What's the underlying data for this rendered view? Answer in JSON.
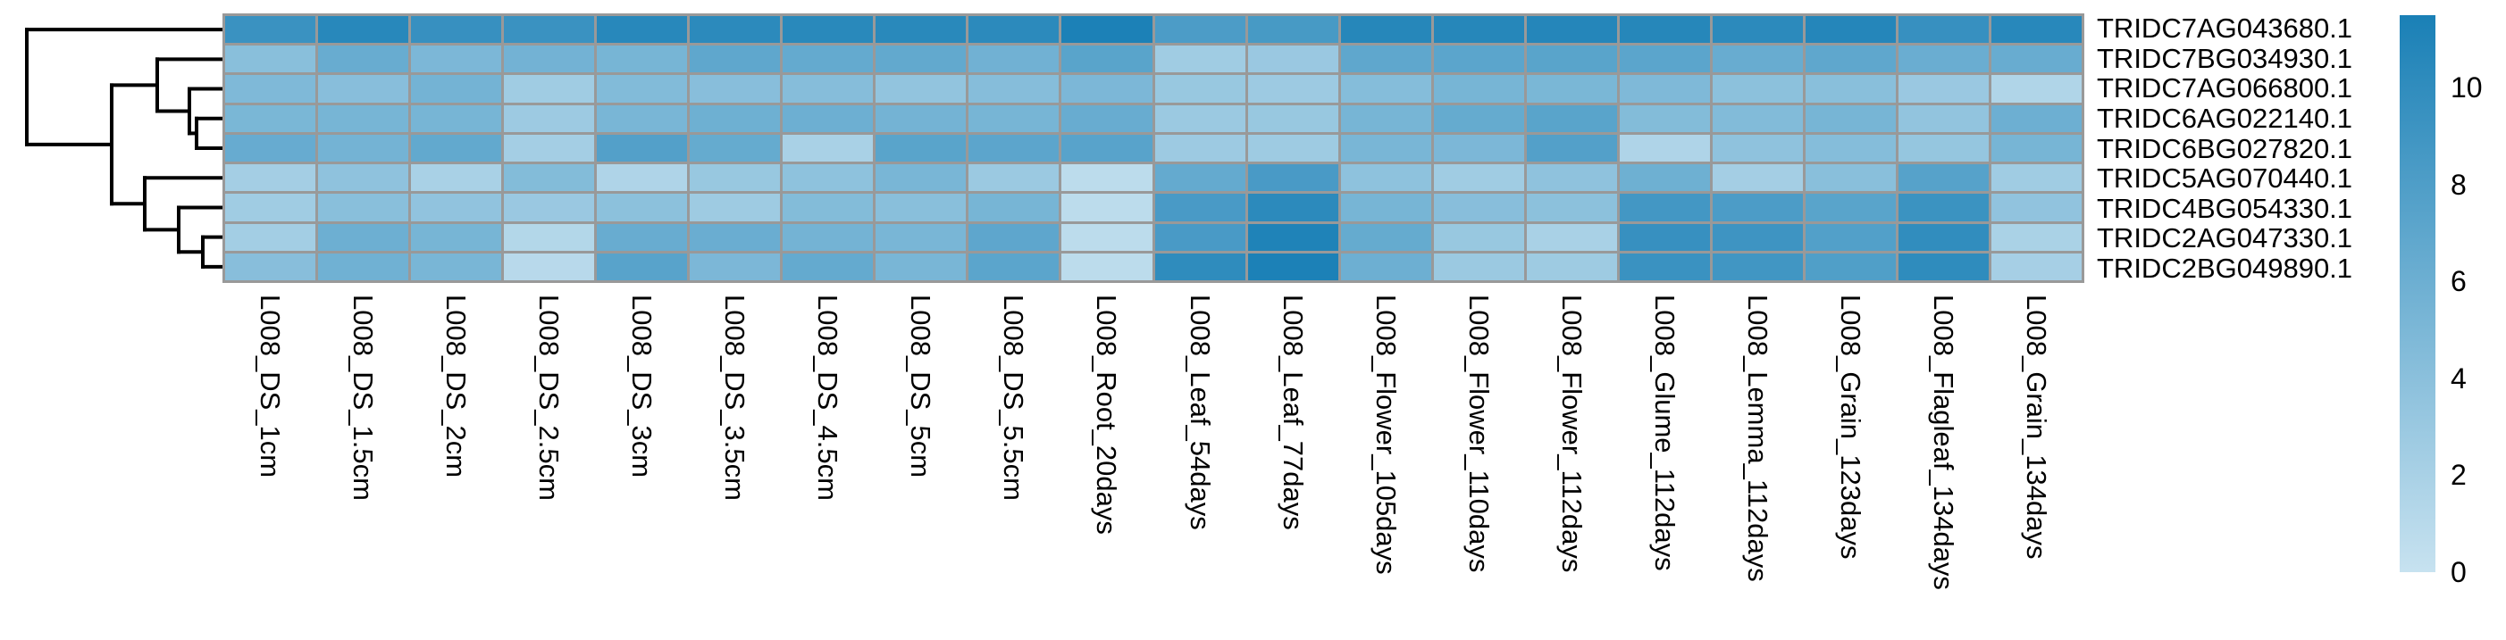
{
  "figure": {
    "background": "#ffffff",
    "text_color": "#000000"
  },
  "chart_data": {
    "type": "heatmap",
    "title": "",
    "xlabel": "",
    "ylabel": "",
    "legend_position": "right",
    "row_dendrogram_side": "left",
    "grid_color": "#999999",
    "dendrogram_line_color": "#000000",
    "rows": [
      "TRIDC7AG043680.1",
      "TRIDC7BG034930.1",
      "TRIDC7AG066800.1",
      "TRIDC6AG022140.1",
      "TRIDC6BG027820.1",
      "TRIDC5AG070440.1",
      "TRIDC4BG054330.1",
      "TRIDC2AG047330.1",
      "TRIDC2BG049890.1"
    ],
    "columns": [
      "L008_DS_1cm",
      "L008_DS_1.5cm",
      "L008_DS_2cm",
      "L008_DS_2.5cm",
      "L008_DS_3cm",
      "L008_DS_3.5cm",
      "L008_DS_4.5cm",
      "L008_DS_5cm",
      "L008_DS_5.5cm",
      "L008_Root_20days",
      "L008_Leaf_54days",
      "L008_Leaf_77days",
      "L008_Flower_105days",
      "L008_Flower_110days",
      "L008_Flower_112days",
      "L008_Glume_112days",
      "L008_Lemma_112days",
      "L008_Grain_123days",
      "L008_Flagleaf_134days",
      "L008_Grain_134days"
    ],
    "values": [
      [
        9.4,
        10.6,
        9.6,
        9.4,
        10.6,
        10.3,
        10.5,
        10.5,
        10.3,
        11.4,
        8.2,
        8.5,
        10.7,
        10.7,
        10.8,
        10.7,
        10.3,
        10.8,
        9.6,
        10.6
      ],
      [
        4.1,
        6.3,
        5.0,
        5.6,
        5.3,
        6.9,
        6.6,
        6.7,
        5.7,
        7.3,
        2.6,
        3.0,
        6.9,
        7.2,
        7.3,
        7.2,
        6.3,
        6.9,
        6.2,
        6.3
      ],
      [
        4.8,
        4.2,
        5.5,
        2.6,
        4.6,
        4.2,
        4.3,
        3.5,
        4.3,
        5.0,
        3.1,
        2.8,
        4.4,
        5.3,
        5.1,
        4.8,
        3.9,
        4.1,
        3.0,
        1.5
      ],
      [
        5.1,
        5.3,
        5.3,
        2.8,
        5.2,
        5.9,
        6.0,
        5.5,
        5.3,
        6.3,
        2.9,
        3.1,
        5.3,
        6.5,
        7.3,
        4.5,
        4.6,
        5.3,
        3.5,
        6.0
      ],
      [
        6.4,
        5.5,
        6.7,
        2.3,
        7.7,
        6.5,
        2.0,
        7.3,
        7.1,
        7.4,
        2.8,
        2.7,
        5.2,
        5.0,
        7.7,
        1.6,
        3.7,
        4.4,
        3.3,
        5.3
      ],
      [
        2.3,
        3.7,
        2.0,
        4.5,
        1.6,
        3.1,
        3.8,
        5.2,
        2.9,
        0.7,
        6.6,
        8.4,
        3.8,
        2.6,
        3.7,
        5.9,
        2.3,
        4.1,
        7.5,
        2.6
      ],
      [
        2.6,
        4.1,
        3.6,
        3.0,
        3.9,
        2.7,
        4.5,
        4.1,
        5.3,
        0.7,
        8.4,
        10.3,
        5.3,
        4.2,
        3.9,
        8.8,
        8.2,
        7.3,
        9.3,
        3.6
      ],
      [
        2.4,
        6.0,
        5.3,
        1.3,
        6.3,
        6.2,
        5.5,
        5.2,
        7.0,
        0.7,
        8.4,
        11.2,
        6.5,
        3.1,
        2.0,
        9.6,
        9.1,
        7.8,
        10.0,
        1.9
      ],
      [
        4.2,
        5.8,
        5.2,
        1.0,
        7.4,
        5.0,
        6.6,
        5.2,
        7.2,
        0.7,
        10.1,
        11.4,
        6.0,
        2.9,
        2.7,
        9.4,
        8.9,
        7.9,
        10.1,
        2.2
      ]
    ],
    "colorbar": {
      "vmin": 0,
      "vmax": 11.5,
      "ticks": [
        0,
        2,
        4,
        6,
        8,
        10
      ],
      "color_low": "#c7e2f0",
      "color_high": "#1a80b6"
    },
    "dendrogram": {
      "depth": 219,
      "children": [
        {
          "leaf": 0
        },
        {
          "depth": 124,
          "children": [
            {
              "depth": 73,
              "children": [
                {
                  "leaf": 1
                },
                {
                  "depth": 37,
                  "children": [
                    {
                      "leaf": 2
                    },
                    {
                      "depth": 29,
                      "children": [
                        {
                          "leaf": 3
                        },
                        {
                          "leaf": 4
                        }
                      ]
                    }
                  ]
                }
              ]
            },
            {
              "depth": 87,
              "children": [
                {
                  "leaf": 5
                },
                {
                  "depth": 49,
                  "children": [
                    {
                      "leaf": 6
                    },
                    {
                      "depth": 22,
                      "children": [
                        {
                          "leaf": 7
                        },
                        {
                          "leaf": 8
                        }
                      ]
                    }
                  ]
                }
              ]
            }
          ]
        }
      ]
    }
  }
}
